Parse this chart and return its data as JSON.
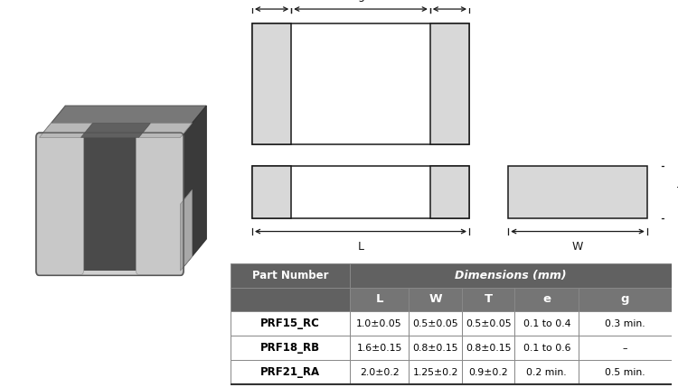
{
  "table_header_bg": "#616161",
  "table_subheader_bg": "#757575",
  "table_row_bg": "#ffffff",
  "table_border_color": "#888888",
  "table_header_text_color": "#ffffff",
  "table_text_color": "#000000",
  "col_header": "Part Number",
  "dim_header": "Dimensions (mm)",
  "sub_headers": [
    "L",
    "W",
    "T",
    "e",
    "g"
  ],
  "rows": [
    [
      "PRF15_RC",
      "1.0±0.05",
      "0.5±0.05",
      "0.5±0.05",
      "0.1 to 0.4",
      "0.3 min."
    ],
    [
      "PRF18_RB",
      "1.6±0.15",
      "0.8±0.15",
      "0.8±0.15",
      "0.1 to 0.6",
      "–"
    ],
    [
      "PRF21_RA",
      "2.0±0.2",
      "1.25±0.2",
      "0.9±0.2",
      "0.2 min.",
      "0.5 min."
    ]
  ],
  "diagram_line_color": "#1a1a1a",
  "diagram_fill_light": "#f0f0f0",
  "diagram_fill_electrode": "#d8d8d8",
  "background_color": "#ffffff",
  "chip_body_dark": "#4a4a4a",
  "chip_body_mid": "#5c5c5c",
  "chip_top_face": "#787878",
  "chip_right_face": "#3a3a3a",
  "chip_terminal_front": "#c8c8c8",
  "chip_terminal_top": "#b8b8b8",
  "chip_terminal_side": "#a8a8a8"
}
